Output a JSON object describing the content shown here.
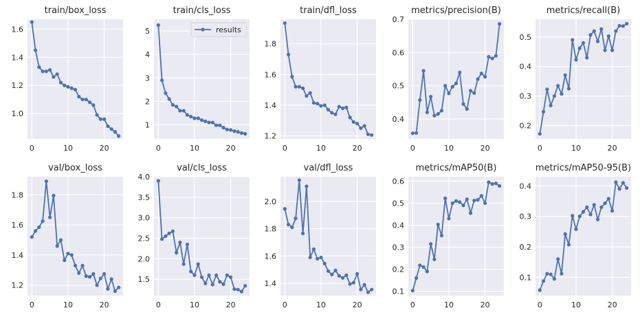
{
  "legend_label": "results",
  "colors": {
    "line": "#4c72b0",
    "plot_bg": "#eaeaf2",
    "grid": "#ffffff",
    "text": "#262626"
  },
  "chart_data": [
    {
      "type": "line",
      "title": "train/box_loss",
      "xlim": [
        -1.2,
        25.2
      ],
      "ylim": [
        0.82,
        1.67
      ],
      "xticks": [
        0,
        10,
        20
      ],
      "yticks": [
        1.0,
        1.2,
        1.4,
        1.6
      ],
      "ytick_labels": [
        "1.0",
        "1.2",
        "1.4",
        "1.6"
      ],
      "legend": false,
      "values": [
        1.65,
        1.45,
        1.33,
        1.3,
        1.3,
        1.31,
        1.26,
        1.28,
        1.22,
        1.2,
        1.19,
        1.18,
        1.17,
        1.12,
        1.1,
        1.1,
        1.08,
        1.06,
        0.99,
        0.96,
        0.96,
        0.91,
        0.89,
        0.87,
        0.84
      ]
    },
    {
      "type": "line",
      "title": "train/cls_loss",
      "xlim": [
        -1.2,
        25.2
      ],
      "ylim": [
        0.4,
        5.5
      ],
      "xticks": [
        0,
        10,
        20
      ],
      "yticks": [
        1,
        2,
        3,
        4,
        5
      ],
      "ytick_labels": [
        "1",
        "2",
        "3",
        "4",
        "5"
      ],
      "legend": true,
      "values": [
        5.25,
        2.9,
        2.35,
        2.1,
        1.85,
        1.78,
        1.6,
        1.6,
        1.42,
        1.35,
        1.28,
        1.28,
        1.2,
        1.15,
        1.1,
        1.1,
        0.98,
        0.98,
        0.88,
        0.8,
        0.78,
        0.73,
        0.7,
        0.65,
        0.62
      ]
    },
    {
      "type": "line",
      "title": "train/dfl_loss",
      "xlim": [
        -1.2,
        25.2
      ],
      "ylim": [
        1.18,
        1.96
      ],
      "xticks": [
        0,
        10,
        20
      ],
      "yticks": [
        1.2,
        1.4,
        1.6,
        1.8
      ],
      "ytick_labels": [
        "1.2",
        "1.4",
        "1.6",
        "1.8"
      ],
      "legend": false,
      "values": [
        1.935,
        1.73,
        1.585,
        1.52,
        1.52,
        1.51,
        1.46,
        1.48,
        1.415,
        1.41,
        1.395,
        1.4,
        1.37,
        1.35,
        1.34,
        1.39,
        1.38,
        1.385,
        1.32,
        1.29,
        1.28,
        1.25,
        1.265,
        1.21,
        1.205
      ]
    },
    {
      "type": "line",
      "title": "metrics/precision(B)",
      "xlim": [
        -1.2,
        25.2
      ],
      "ylim": [
        0.34,
        0.7
      ],
      "xticks": [
        0,
        10,
        20
      ],
      "yticks": [
        0.4,
        0.5,
        0.6,
        0.7
      ],
      "ytick_labels": [
        "0.4",
        "0.5",
        "0.6",
        "0.7"
      ],
      "legend": false,
      "values": [
        0.357,
        0.358,
        0.457,
        0.545,
        0.42,
        0.467,
        0.41,
        0.415,
        0.425,
        0.5,
        0.477,
        0.497,
        0.507,
        0.54,
        0.445,
        0.43,
        0.485,
        0.478,
        0.52,
        0.537,
        0.527,
        0.587,
        0.582,
        0.59,
        0.686
      ]
    },
    {
      "type": "line",
      "title": "metrics/recall(B)",
      "xlim": [
        -1.2,
        25.2
      ],
      "ylim": [
        0.155,
        0.56
      ],
      "xticks": [
        0,
        10,
        20
      ],
      "yticks": [
        0.2,
        0.3,
        0.4,
        0.5
      ],
      "ytick_labels": [
        "0.2",
        "0.3",
        "0.4",
        "0.5"
      ],
      "legend": false,
      "values": [
        0.172,
        0.247,
        0.323,
        0.268,
        0.3,
        0.335,
        0.307,
        0.371,
        0.325,
        0.49,
        0.423,
        0.462,
        0.48,
        0.43,
        0.507,
        0.52,
        0.485,
        0.527,
        0.455,
        0.503,
        0.455,
        0.52,
        0.538,
        0.537,
        0.545
      ]
    },
    {
      "type": "line",
      "title": "val/box_loss",
      "xlim": [
        -1.2,
        25.2
      ],
      "ylim": [
        1.13,
        1.92
      ],
      "xticks": [
        0,
        10,
        20
      ],
      "yticks": [
        1.2,
        1.4,
        1.6,
        1.8
      ],
      "ytick_labels": [
        "1.2",
        "1.4",
        "1.6",
        "1.8"
      ],
      "legend": false,
      "values": [
        1.52,
        1.56,
        1.585,
        1.625,
        1.89,
        1.65,
        1.795,
        1.46,
        1.5,
        1.365,
        1.41,
        1.4,
        1.33,
        1.28,
        1.33,
        1.26,
        1.255,
        1.275,
        1.2,
        1.245,
        1.275,
        1.175,
        1.24,
        1.16,
        1.185
      ]
    },
    {
      "type": "line",
      "title": "val/cls_loss",
      "xlim": [
        -1.2,
        25.2
      ],
      "ylim": [
        1.1,
        4.0
      ],
      "xticks": [
        0,
        10,
        20
      ],
      "yticks": [
        1.5,
        2.0,
        2.5,
        3.0,
        3.5,
        4.0
      ],
      "ytick_labels": [
        "1.5",
        "2.0",
        "2.5",
        "3.0",
        "3.5",
        "4.0"
      ],
      "legend": false,
      "values": [
        3.9,
        2.48,
        2.55,
        2.62,
        2.67,
        2.15,
        2.4,
        1.87,
        2.35,
        1.69,
        1.6,
        1.87,
        1.55,
        1.4,
        1.6,
        1.37,
        1.6,
        1.44,
        1.38,
        1.6,
        1.55,
        1.26,
        1.25,
        1.2,
        1.34
      ]
    },
    {
      "type": "line",
      "title": "val/dfl_loss",
      "xlim": [
        -1.2,
        25.2
      ],
      "ylim": [
        1.31,
        2.18
      ],
      "xticks": [
        0,
        10,
        20
      ],
      "yticks": [
        1.4,
        1.6,
        1.8,
        2.0
      ],
      "ytick_labels": [
        "1.4",
        "1.6",
        "1.8",
        "2.0"
      ],
      "legend": false,
      "values": [
        1.945,
        1.83,
        1.81,
        1.875,
        2.155,
        1.765,
        2.11,
        1.59,
        1.65,
        1.58,
        1.59,
        1.545,
        1.49,
        1.465,
        1.495,
        1.455,
        1.44,
        1.46,
        1.395,
        1.405,
        1.47,
        1.355,
        1.39,
        1.335,
        1.355
      ]
    },
    {
      "type": "line",
      "title": "metrics/mAP50(B)",
      "xlim": [
        -1.2,
        25.2
      ],
      "ylim": [
        0.08,
        0.62
      ],
      "xticks": [
        0,
        10,
        20
      ],
      "yticks": [
        0.1,
        0.2,
        0.3,
        0.4,
        0.5,
        0.6
      ],
      "ytick_labels": [
        "0.1",
        "0.2",
        "0.3",
        "0.4",
        "0.5",
        "0.6"
      ],
      "legend": false,
      "values": [
        0.103,
        0.16,
        0.218,
        0.21,
        0.19,
        0.315,
        0.245,
        0.403,
        0.353,
        0.522,
        0.43,
        0.5,
        0.51,
        0.505,
        0.49,
        0.518,
        0.455,
        0.512,
        0.515,
        0.533,
        0.5,
        0.595,
        0.587,
        0.59,
        0.578
      ]
    },
    {
      "type": "line",
      "title": "metrics/mAP50-95(B)",
      "xlim": [
        -1.2,
        25.2
      ],
      "ylim": [
        0.04,
        0.43
      ],
      "xticks": [
        0,
        10,
        20
      ],
      "yticks": [
        0.1,
        0.2,
        0.3,
        0.4
      ],
      "ytick_labels": [
        "0.1",
        "0.2",
        "0.3",
        "0.4"
      ],
      "legend": false,
      "values": [
        0.058,
        0.088,
        0.112,
        0.11,
        0.095,
        0.16,
        0.112,
        0.242,
        0.207,
        0.302,
        0.258,
        0.3,
        0.315,
        0.33,
        0.306,
        0.338,
        0.29,
        0.33,
        0.343,
        0.358,
        0.318,
        0.412,
        0.39,
        0.41,
        0.393
      ]
    }
  ]
}
